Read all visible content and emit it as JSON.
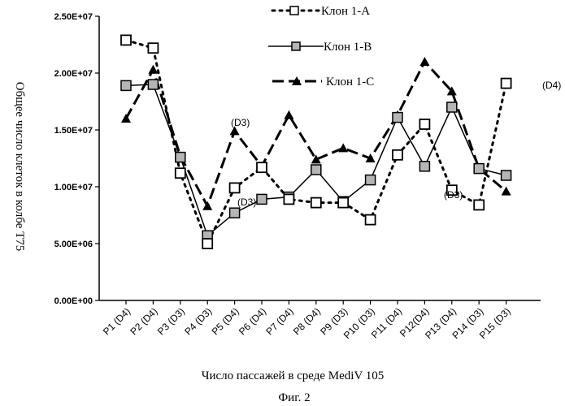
{
  "chart_data": {
    "type": "line",
    "title": "",
    "xlabel": "Число пассажей в среде MediV 105",
    "ylabel": "Общее число клеток в колбе T75",
    "caption": "Фиг. 2",
    "ylim": [
      0,
      25000000
    ],
    "y_ticks": [
      0,
      5000000,
      10000000,
      15000000,
      20000000,
      25000000
    ],
    "y_tick_labels": [
      "0.00E+00",
      "5.00E+06",
      "1.00E+07",
      "1.50E+07",
      "2.00E+07",
      "2.50E+07"
    ],
    "categories": [
      "P1 (D4)",
      "P2 (D4)",
      "P3 (D3)",
      "P4 (D3)",
      "P5 (D4)",
      "P6 (D4)",
      "P7 (D4)",
      "P8 (D4)",
      "P9 (D3)",
      "P10 (D3)",
      "P11 (D4)",
      "P12(D4)",
      "P13 (D4)",
      "P14 (D3)",
      "P15 (D3)"
    ],
    "series": [
      {
        "name": "Клон 1-А",
        "style": "dotted",
        "marker": "open-square",
        "values": [
          22900000,
          22200000,
          11200000,
          5000000,
          9900000,
          11700000,
          8900000,
          8600000,
          8600000,
          7100000,
          12800000,
          15500000,
          9700000,
          8400000,
          19100000
        ]
      },
      {
        "name": "Клон 1-В",
        "style": "solid",
        "marker": "hatched-square",
        "values": [
          18900000,
          19000000,
          12600000,
          5700000,
          7700000,
          8900000,
          9100000,
          11500000,
          8700000,
          10600000,
          16100000,
          11800000,
          17000000,
          11600000,
          11000000
        ]
      },
      {
        "name": "Клон 1-С",
        "style": "dashed",
        "marker": "triangle",
        "values": [
          16000000,
          20300000,
          12700000,
          8300000,
          14900000,
          11800000,
          16300000,
          12400000,
          13400000,
          12500000,
          16300000,
          21000000,
          18400000,
          11600000,
          9600000
        ]
      }
    ],
    "annotations": [
      "(D3)",
      "(D3)",
      "(D3)",
      "(D4)"
    ],
    "legend_position": "top-right"
  }
}
